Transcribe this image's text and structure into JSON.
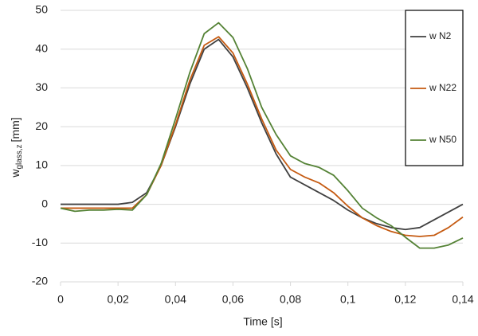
{
  "chart_data": {
    "type": "line",
    "x_label": "Time [s]",
    "y_label": {
      "main": "w",
      "sub": "glass,z",
      "unit": "[mm]"
    },
    "x": [
      0,
      0.005,
      0.01,
      0.015,
      0.02,
      0.025,
      0.03,
      0.035,
      0.04,
      0.045,
      0.05,
      0.055,
      0.06,
      0.065,
      0.07,
      0.075,
      0.08,
      0.085,
      0.09,
      0.095,
      0.1,
      0.105,
      0.11,
      0.115,
      0.12,
      0.125,
      0.13,
      0.135,
      0.14
    ],
    "series": [
      {
        "name": "w N2",
        "color": "#404040",
        "values": [
          0,
          0,
          0,
          0,
          0,
          0.5,
          3,
          10,
          20,
          31,
          40,
          42.5,
          38,
          30,
          21,
          13,
          7,
          5,
          3,
          1,
          -1.5,
          -3.5,
          -5,
          -6,
          -6.5,
          -6,
          -4,
          -2,
          0
        ]
      },
      {
        "name": "w N22",
        "color": "#c55a11",
        "values": [
          -1,
          -1,
          -1,
          -1,
          -1,
          -1,
          2.5,
          10,
          20.5,
          32,
          41,
          43.2,
          39,
          31,
          22,
          14,
          9,
          7,
          5.5,
          3,
          -0.5,
          -3.5,
          -5.5,
          -7,
          -8,
          -8.3,
          -8,
          -6,
          -3.3
        ]
      },
      {
        "name": "w N50",
        "color": "#548235",
        "values": [
          -1,
          -1.8,
          -1.5,
          -1.5,
          -1.3,
          -1.5,
          2.5,
          10.5,
          22,
          34,
          44,
          46.8,
          43,
          35,
          25,
          18,
          12.5,
          10.5,
          9.5,
          7.5,
          3.5,
          -1,
          -3.5,
          -5.5,
          -8.5,
          -11.3,
          -11.3,
          -10.5,
          -8.7
        ]
      }
    ],
    "xlim": [
      0,
      0.14
    ],
    "xticks": [
      0,
      {
        "value": 0.02,
        "label": "0,02"
      },
      {
        "value": 0.04,
        "label": "0,04"
      },
      {
        "value": 0.06,
        "label": "0,06"
      },
      {
        "value": 0.08,
        "label": "0,08"
      },
      {
        "value": 0.1,
        "label": "0,1"
      },
      {
        "value": 0.12,
        "label": "0,12"
      },
      {
        "value": 0.14,
        "label": "0,14"
      }
    ],
    "ylim": [
      -20,
      50
    ],
    "yticks": [
      -20,
      -10,
      0,
      10,
      20,
      30,
      40,
      50
    ],
    "grid": true,
    "legend": "upper right"
  }
}
